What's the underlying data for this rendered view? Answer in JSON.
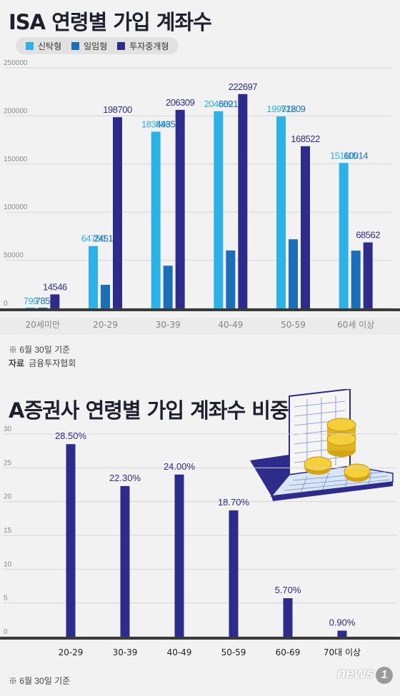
{
  "chart1": {
    "title": "ISA 연령별 가입 계좌수",
    "legend": [
      "신탁형",
      "일임형",
      "투자중개형"
    ],
    "colors": [
      "#2eb1e6",
      "#1a6fb8",
      "#2d2c8a"
    ],
    "note": "※ 6월 30일 기준",
    "source_label": "자료",
    "source_text": "금융투자협회"
  },
  "chart2": {
    "title": "A증권사 연령별 가입 계좌수 비중",
    "note": "※ 6월 30일 기준"
  },
  "logo": {
    "text": "news",
    "mark": "1"
  },
  "chart_data": [
    {
      "type": "bar",
      "title": "ISA 연령별 가입 계좌수",
      "categories": [
        "20세미만",
        "20-29",
        "30-39",
        "40-49",
        "50-59",
        "60세 이상"
      ],
      "series": [
        {
          "name": "신탁형",
          "values": [
            799,
            64750,
            183596,
            204889,
            199522,
            151115
          ]
        },
        {
          "name": "일임형",
          "values": [
            785,
            24511,
            44352,
            60215,
            71809,
            60014
          ]
        },
        {
          "name": "투자중개형",
          "values": [
            14546,
            198700,
            206309,
            222697,
            168522,
            68562
          ]
        }
      ],
      "yticks": [
        0,
        50000,
        100000,
        150000,
        200000,
        250000
      ],
      "ylim": [
        0,
        250000
      ],
      "grid": true,
      "legend_position": "top-left"
    },
    {
      "type": "bar",
      "title": "A증권사 연령별 가입 계좌수 비중",
      "categories": [
        "20-29",
        "30-39",
        "40-49",
        "50-59",
        "60-69",
        "70대 이상"
      ],
      "values": [
        28.5,
        22.3,
        24.0,
        18.7,
        5.7,
        0.9
      ],
      "labels": [
        "28.50%",
        "22.30%",
        "24.00%",
        "18.70%",
        "5.70%",
        "0.90%"
      ],
      "yticks": [
        0,
        5,
        10,
        15,
        20,
        25,
        30
      ],
      "ylim": [
        0,
        30
      ],
      "grid": true,
      "color": "#2d2c8a"
    }
  ]
}
